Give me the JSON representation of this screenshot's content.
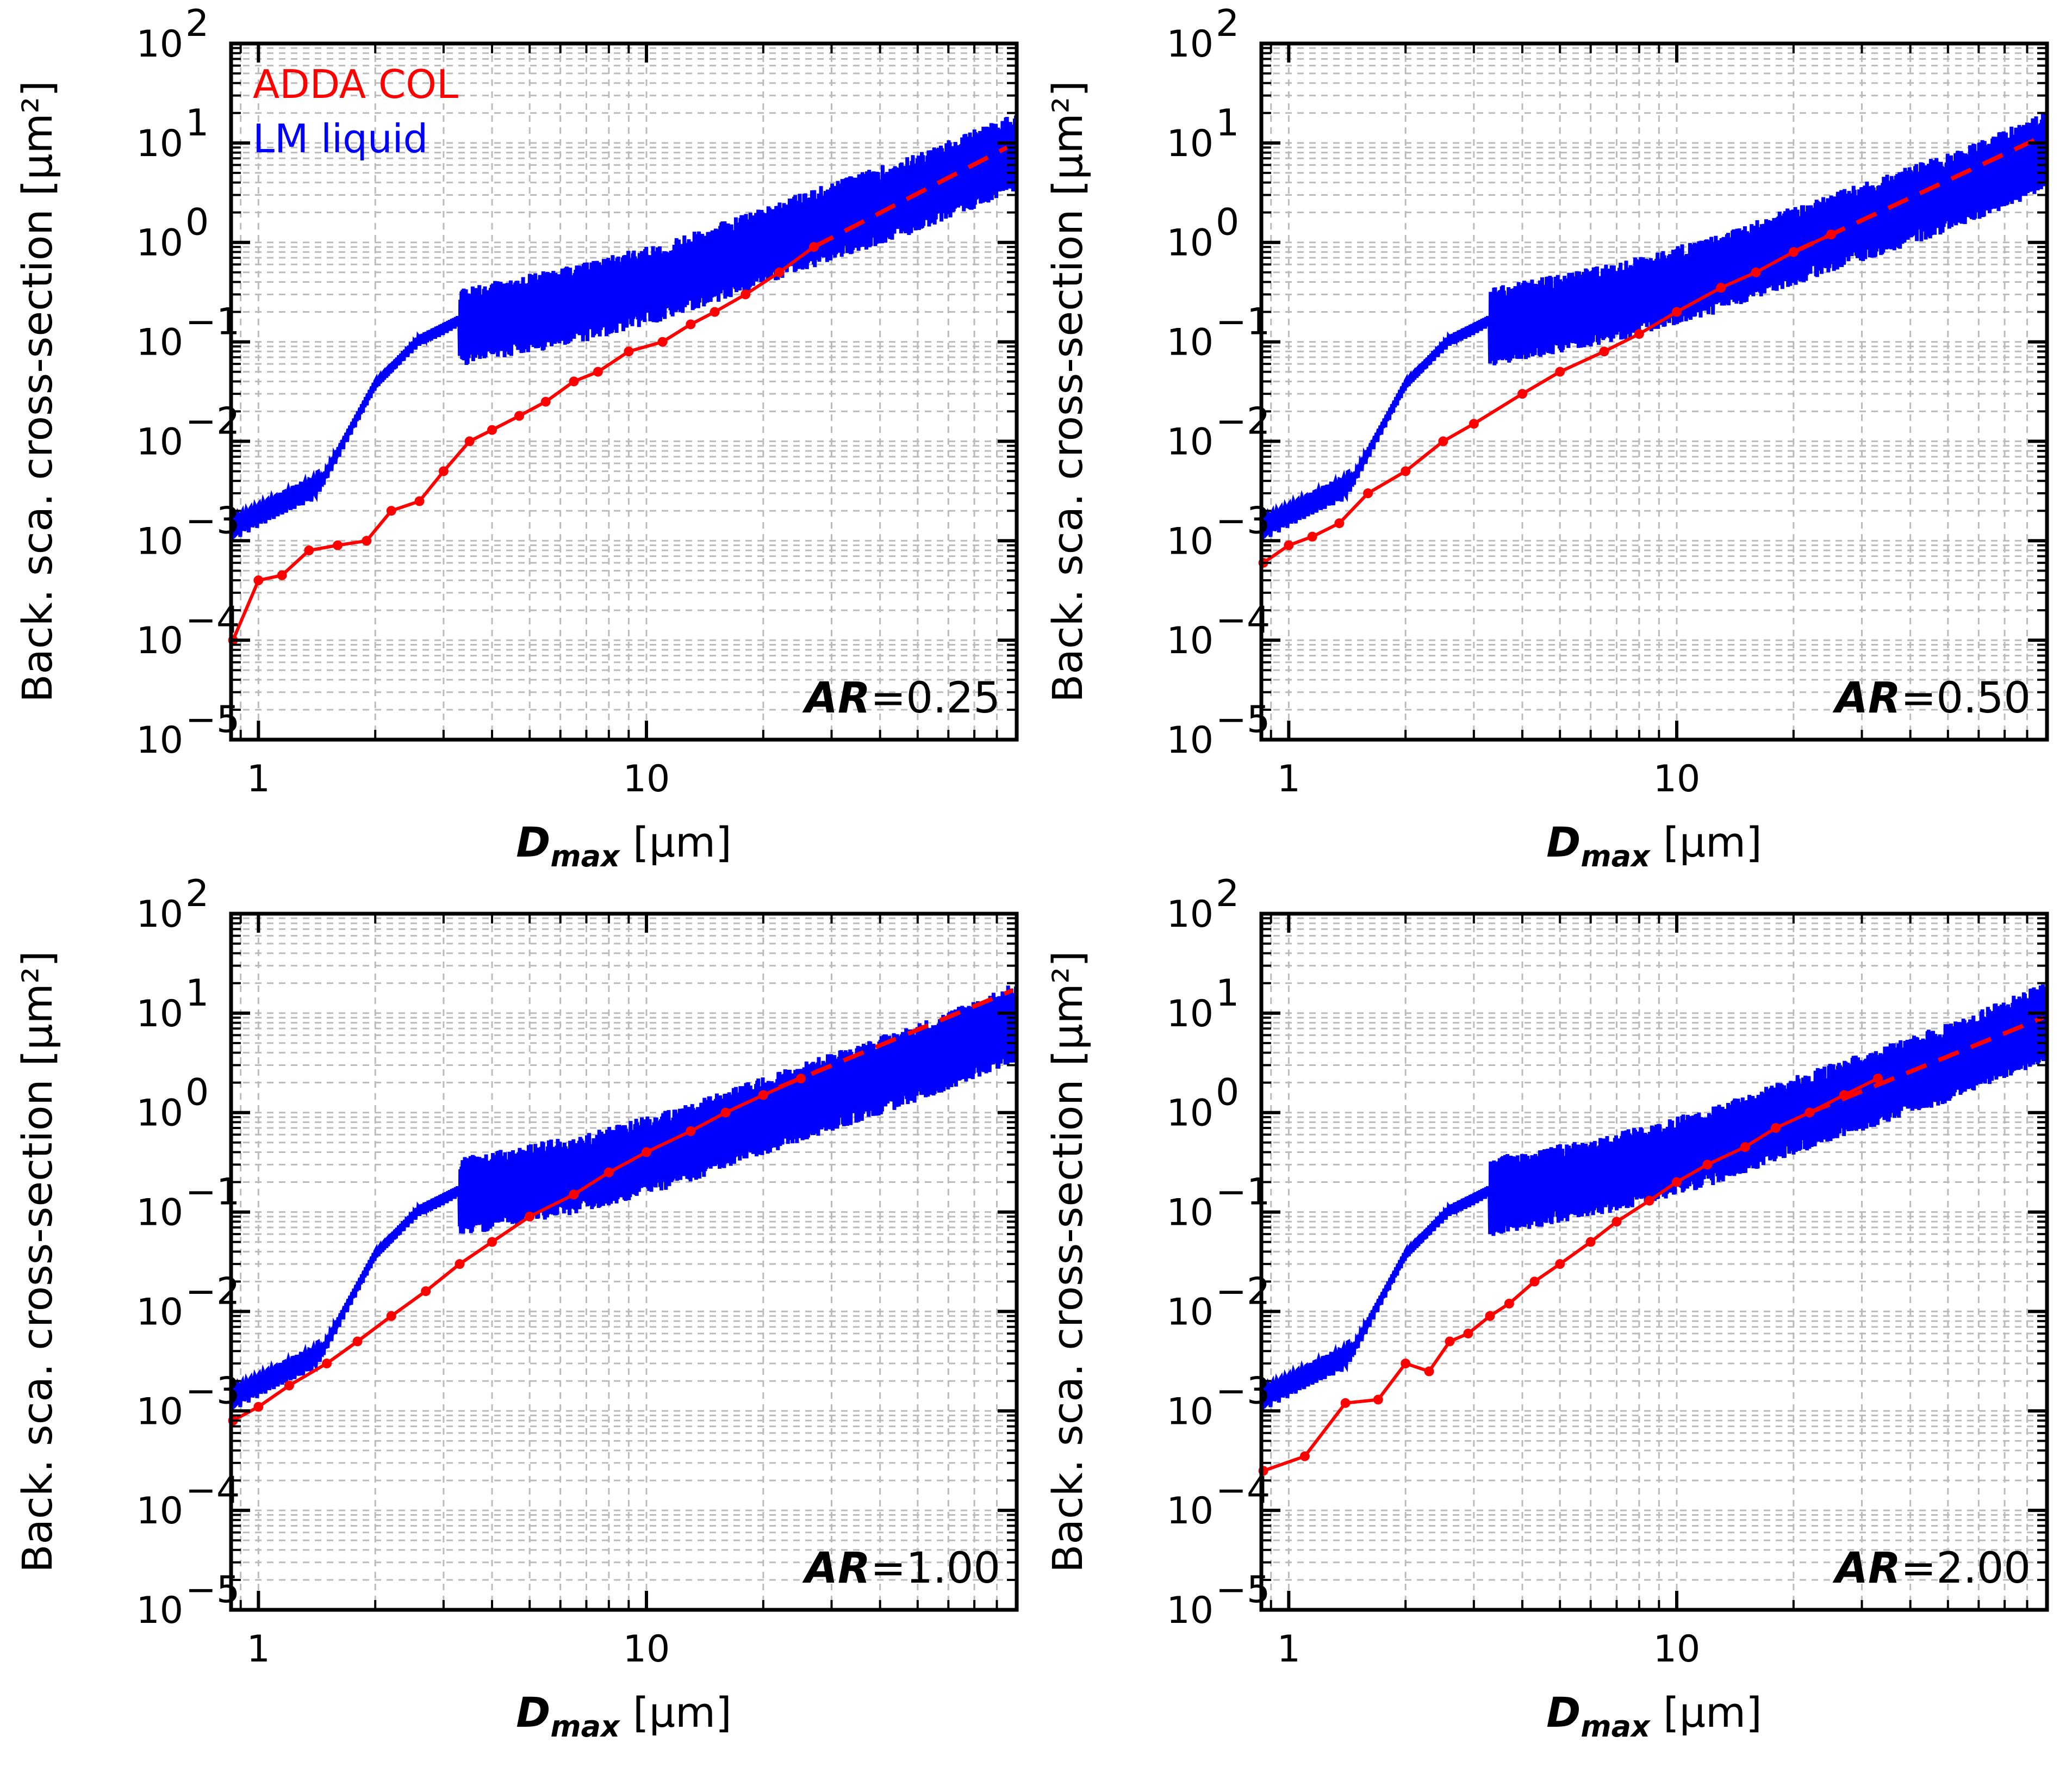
{
  "figure": {
    "legend": [
      {
        "label": "ADDA COL",
        "color": "#ff0000"
      },
      {
        "label": "LM liquid",
        "color": "#0000ff"
      }
    ]
  },
  "chart_data": [
    {
      "type": "line",
      "xscale": "log",
      "yscale": "log",
      "xlim": [
        0.85,
        90
      ],
      "ylim": [
        1e-05,
        100
      ],
      "xlabel": "D_max [μm]",
      "ylabel": "Back. sca. cross-section [μm²]",
      "x_ticks": [
        "1",
        "10"
      ],
      "y_ticks": [
        "10^-5",
        "10^-4",
        "10^-3",
        "10^-2",
        "10^-1",
        "10^0",
        "10^1",
        "10^2"
      ],
      "grid": true,
      "panel_label": {
        "name": "AR",
        "value": "=0.25"
      },
      "series": [
        {
          "name": "ADDA COL",
          "color": "#ff0000",
          "style": "solid-markers",
          "x": [
            0.86,
            1.0,
            1.15,
            1.35,
            1.6,
            1.9,
            2.2,
            2.6,
            3.0,
            3.5,
            4.0,
            4.7,
            5.5,
            6.5,
            7.5,
            9.0,
            11,
            13,
            15,
            18,
            22,
            27
          ],
          "y": [
            0.0001,
            0.0004,
            0.00045,
            0.0008,
            0.0009,
            0.001,
            0.002,
            0.0025,
            0.005,
            0.01,
            0.013,
            0.018,
            0.025,
            0.04,
            0.05,
            0.08,
            0.1,
            0.15,
            0.2,
            0.3,
            0.5,
            0.9
          ]
        },
        {
          "name": "ADDA COL fit",
          "color": "#ff0000",
          "style": "dashed",
          "x": [
            27,
            85
          ],
          "y": [
            0.9,
            9
          ]
        },
        {
          "name": "LM liquid",
          "color": "#0000ff",
          "style": "solid"
        }
      ]
    },
    {
      "type": "line",
      "xscale": "log",
      "yscale": "log",
      "xlim": [
        0.85,
        90
      ],
      "ylim": [
        1e-05,
        100
      ],
      "xlabel": "D_max [μm]",
      "ylabel": "Back. sca. cross-section [μm²]",
      "x_ticks": [
        "1",
        "10"
      ],
      "y_ticks": [
        "10^-5",
        "10^-4",
        "10^-3",
        "10^-2",
        "10^-1",
        "10^0",
        "10^1",
        "10^2"
      ],
      "grid": true,
      "panel_label": {
        "name": "AR",
        "value": "=0.50"
      },
      "series": [
        {
          "name": "ADDA COL",
          "color": "#ff0000",
          "style": "solid-markers",
          "x": [
            0.86,
            1.0,
            1.15,
            1.35,
            1.6,
            2.0,
            2.5,
            3.0,
            4.0,
            5.0,
            6.5,
            8.0,
            10,
            13,
            16,
            20,
            25
          ],
          "y": [
            0.0006,
            0.0009,
            0.0011,
            0.0015,
            0.003,
            0.005,
            0.01,
            0.015,
            0.03,
            0.05,
            0.08,
            0.12,
            0.2,
            0.35,
            0.5,
            0.8,
            1.2
          ]
        },
        {
          "name": "ADDA COL fit",
          "color": "#ff0000",
          "style": "dashed",
          "x": [
            20,
            85
          ],
          "y": [
            0.8,
            11
          ]
        },
        {
          "name": "LM liquid",
          "color": "#0000ff",
          "style": "solid"
        }
      ]
    },
    {
      "type": "line",
      "xscale": "log",
      "yscale": "log",
      "xlim": [
        0.85,
        90
      ],
      "ylim": [
        1e-05,
        100
      ],
      "xlabel": "D_max [μm]",
      "ylabel": "Back. sca. cross-section [μm²]",
      "x_ticks": [
        "1",
        "10"
      ],
      "y_ticks": [
        "10^-5",
        "10^-4",
        "10^-3",
        "10^-2",
        "10^-1",
        "10^0",
        "10^1",
        "10^2"
      ],
      "grid": true,
      "panel_label": {
        "name": "AR",
        "value": "=1.00"
      },
      "series": [
        {
          "name": "ADDA COL",
          "color": "#ff0000",
          "style": "solid-markers",
          "x": [
            0.86,
            1.0,
            1.2,
            1.5,
            1.8,
            2.2,
            2.7,
            3.3,
            4.0,
            5.0,
            6.5,
            8.0,
            10,
            13,
            16,
            20,
            25
          ],
          "y": [
            0.0008,
            0.0011,
            0.0018,
            0.003,
            0.005,
            0.009,
            0.016,
            0.03,
            0.05,
            0.09,
            0.15,
            0.25,
            0.4,
            0.65,
            1.0,
            1.5,
            2.2
          ]
        },
        {
          "name": "ADDA COL fit",
          "color": "#ff0000",
          "style": "dashed",
          "x": [
            22,
            88
          ],
          "y": [
            1.8,
            17
          ]
        },
        {
          "name": "LM liquid",
          "color": "#0000ff",
          "style": "solid"
        }
      ]
    },
    {
      "type": "line",
      "xscale": "log",
      "yscale": "log",
      "xlim": [
        0.85,
        90
      ],
      "ylim": [
        1e-05,
        100
      ],
      "xlabel": "D_max [μm]",
      "ylabel": "Back. sca. cross-section [μm²]",
      "x_ticks": [
        "1",
        "10"
      ],
      "y_ticks": [
        "10^-5",
        "10^-4",
        "10^-3",
        "10^-2",
        "10^-1",
        "10^0",
        "10^1",
        "10^2"
      ],
      "grid": true,
      "panel_label": {
        "name": "AR",
        "value": "=2.00"
      },
      "series": [
        {
          "name": "ADDA COL",
          "color": "#ff0000",
          "style": "solid-markers",
          "x": [
            0.86,
            1.1,
            1.4,
            1.7,
            2.0,
            2.3,
            2.6,
            2.9,
            3.3,
            3.7,
            4.3,
            5.0,
            6.0,
            7.0,
            8.5,
            10,
            12,
            15,
            18,
            22,
            27,
            33
          ],
          "y": [
            0.00025,
            0.00035,
            0.0012,
            0.0013,
            0.003,
            0.0025,
            0.005,
            0.006,
            0.009,
            0.012,
            0.02,
            0.03,
            0.05,
            0.08,
            0.13,
            0.2,
            0.3,
            0.45,
            0.7,
            1.0,
            1.5,
            2.2
          ]
        },
        {
          "name": "ADDA COL fit",
          "color": "#ff0000",
          "style": "dashed",
          "x": [
            22,
            88
          ],
          "y": [
            1.0,
            9
          ]
        },
        {
          "name": "LM liquid",
          "color": "#0000ff",
          "style": "solid"
        }
      ]
    }
  ]
}
